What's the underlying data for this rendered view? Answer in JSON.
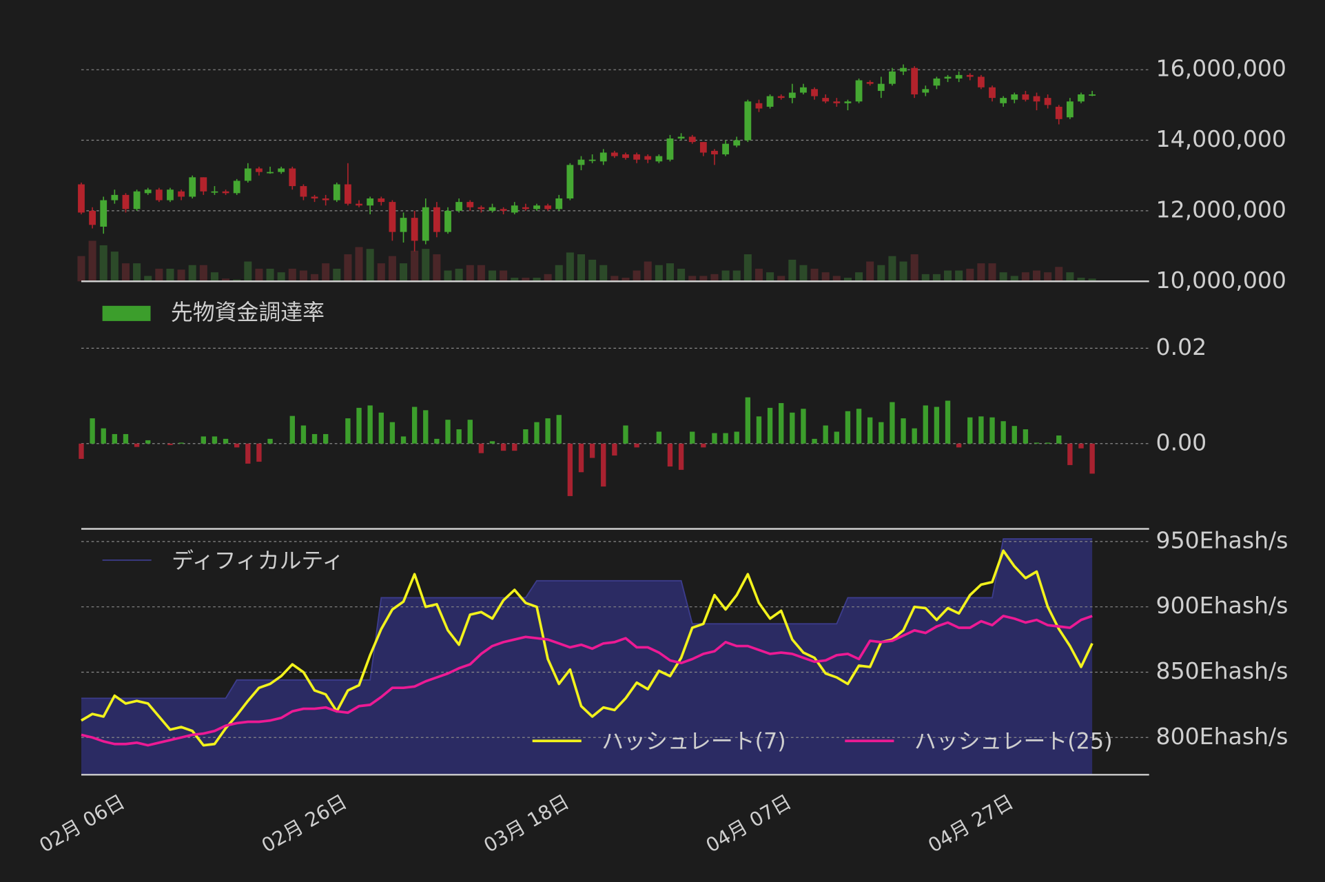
{
  "chart_data": [
    {
      "type": "candlestick",
      "open": [
        12750000,
        12000000,
        11550000,
        12300000,
        12450000,
        12050000,
        12500000,
        12600000,
        12300000,
        12550000,
        12400000,
        12950000,
        12550000,
        12550000,
        12500000,
        12850000,
        13200000,
        13100000,
        13100000,
        13200000,
        12700000,
        12400000,
        12350000,
        12300000,
        12750000,
        12200000,
        12150000,
        12350000,
        12250000,
        11400000,
        11800000,
        11150000,
        12100000,
        11400000,
        12000000,
        12250000,
        12100000,
        12000000,
        12050000,
        11950000,
        12100000,
        12050000,
        12150000,
        12050000,
        12350000,
        13300000,
        13450000,
        13400000,
        13650000,
        13600000,
        13600000,
        13550000,
        13400000,
        13450000,
        14050000,
        14100000,
        13950000,
        13700000,
        13600000,
        13850000,
        14000000,
        15050000,
        14950000,
        15250000,
        15200000,
        15350000,
        15450000,
        15200000,
        15100000,
        15050000,
        15100000,
        15650000,
        15400000,
        15600000,
        15950000,
        16050000,
        15350000,
        15550000,
        15750000,
        15750000,
        15850000,
        15800000,
        15500000,
        15050000,
        15150000,
        15300000,
        15250000,
        15200000,
        14950000,
        14650000,
        15100000,
        15300000
      ],
      "high": [
        12800000,
        12100000,
        12400000,
        12600000,
        12500000,
        12600000,
        12650000,
        12650000,
        12650000,
        12600000,
        13000000,
        12950000,
        12700000,
        12600000,
        12900000,
        13350000,
        13250000,
        13250000,
        13250000,
        13250000,
        12750000,
        12450000,
        12450000,
        12800000,
        13350000,
        12300000,
        12400000,
        12400000,
        12300000,
        11950000,
        12000000,
        12350000,
        12250000,
        12100000,
        12350000,
        12300000,
        12150000,
        12200000,
        12100000,
        12250000,
        12200000,
        12200000,
        12200000,
        12450000,
        13350000,
        13550000,
        13600000,
        13750000,
        13700000,
        13650000,
        13650000,
        13600000,
        13600000,
        14150000,
        14200000,
        14150000,
        13950000,
        13750000,
        14000000,
        14100000,
        15150000,
        15150000,
        15300000,
        15300000,
        15600000,
        15600000,
        15500000,
        15300000,
        15200000,
        15150000,
        15750000,
        15700000,
        15800000,
        16050000,
        16150000,
        16100000,
        15550000,
        15800000,
        15850000,
        15950000,
        15900000,
        15850000,
        15550000,
        15250000,
        15350000,
        15400000,
        15350000,
        15300000,
        15000000,
        15200000,
        15350000,
        15400000
      ],
      "low": [
        11900000,
        11500000,
        11350000,
        12200000,
        11950000,
        12000000,
        12450000,
        12250000,
        12250000,
        12300000,
        12350000,
        12450000,
        12450000,
        12450000,
        12450000,
        12800000,
        13000000,
        13050000,
        13050000,
        12600000,
        12300000,
        12250000,
        12150000,
        12250000,
        12150000,
        12100000,
        11900000,
        12150000,
        11150000,
        11100000,
        10850000,
        11050000,
        11250000,
        11350000,
        11950000,
        12000000,
        11950000,
        11950000,
        11900000,
        11900000,
        12000000,
        12000000,
        12000000,
        12000000,
        12300000,
        13150000,
        13350000,
        13300000,
        13500000,
        13450000,
        13350000,
        13350000,
        13350000,
        13400000,
        14000000,
        13900000,
        13550000,
        13300000,
        13550000,
        13800000,
        13950000,
        14800000,
        14900000,
        15150000,
        15050000,
        15300000,
        15150000,
        15050000,
        14950000,
        14850000,
        15050000,
        15550000,
        15200000,
        15550000,
        15850000,
        15200000,
        15250000,
        15450000,
        15650000,
        15650000,
        15700000,
        15450000,
        15100000,
        14950000,
        15050000,
        15100000,
        14850000,
        14900000,
        14450000,
        14600000,
        15050000,
        15250000
      ],
      "close": [
        11950000,
        11600000,
        12300000,
        12450000,
        12050000,
        12550000,
        12600000,
        12300000,
        12600000,
        12400000,
        12950000,
        12550000,
        12550000,
        12500000,
        12850000,
        13200000,
        13100000,
        13100000,
        13200000,
        12700000,
        12400000,
        12350000,
        12300000,
        12750000,
        12200000,
        12150000,
        12350000,
        12250000,
        11400000,
        11800000,
        11150000,
        12100000,
        11400000,
        12000000,
        12250000,
        12100000,
        12050000,
        12100000,
        12000000,
        12150000,
        12050000,
        12150000,
        12050000,
        12350000,
        13300000,
        13450000,
        13450000,
        13650000,
        13550000,
        13500000,
        13450000,
        13450000,
        13550000,
        14050000,
        14100000,
        13950000,
        13650000,
        13600000,
        13900000,
        14000000,
        15100000,
        14900000,
        15250000,
        15200000,
        15350000,
        15500000,
        15250000,
        15100000,
        15050000,
        15100000,
        15700000,
        15600000,
        15600000,
        15950000,
        16050000,
        15300000,
        15450000,
        15750000,
        15800000,
        15850000,
        15800000,
        15500000,
        15200000,
        15200000,
        15300000,
        15150000,
        15100000,
        15000000,
        14600000,
        15100000,
        15300000,
        15300000
      ],
      "volume": [
        28,
        45,
        40,
        33,
        20,
        20,
        6,
        14,
        14,
        13,
        18,
        18,
        10,
        3,
        2,
        22,
        14,
        14,
        10,
        14,
        12,
        8,
        20,
        14,
        30,
        38,
        36,
        20,
        28,
        20,
        34,
        36,
        30,
        12,
        14,
        18,
        18,
        12,
        12,
        4,
        4,
        4,
        8,
        18,
        32,
        30,
        24,
        18,
        6,
        4,
        12,
        22,
        18,
        20,
        14,
        6,
        6,
        8,
        12,
        12,
        30,
        14,
        10,
        6,
        24,
        18,
        14,
        10,
        6,
        4,
        10,
        22,
        18,
        28,
        22,
        30,
        8,
        8,
        12,
        12,
        14,
        20,
        20,
        10,
        6,
        10,
        12,
        10,
        16,
        10,
        4,
        3
      ],
      "up_color": "#45a832",
      "down_color": "#b3232c",
      "volume_up_color": "#2c4a29",
      "volume_down_color": "#4a2628",
      "ylim": [
        10000000,
        16300000
      ],
      "yticks": [
        {
          "value": 10000000,
          "label": "10,000,000"
        },
        {
          "value": 12000000,
          "label": "12,000,000"
        },
        {
          "value": 14000000,
          "label": "14,000,000"
        },
        {
          "value": 16000000,
          "label": "16,000,000"
        }
      ],
      "grid": true
    },
    {
      "type": "bar",
      "series": [
        {
          "name": "先物資金調達率",
          "color": "#3c9e2c",
          "negative_color": "#a82230",
          "values": [
            -0.0032,
            0.0053,
            0.0032,
            0.002,
            0.002,
            -0.0007,
            0.0007,
            0,
            -0.0003,
            0.0002,
            0,
            0.0015,
            0.0015,
            0.001,
            -0.0008,
            -0.0042,
            -0.0038,
            0.001,
            0,
            0.0058,
            0.0038,
            0.002,
            0.002,
            0,
            0.0053,
            0.0075,
            0.008,
            0.0065,
            0.0045,
            0.0015,
            0.0077,
            0.007,
            0.001,
            0.005,
            0.003,
            0.005,
            -0.002,
            0.0005,
            -0.0015,
            -0.0015,
            0.003,
            0.0045,
            0.0053,
            0.006,
            -0.011,
            -0.006,
            -0.003,
            -0.009,
            -0.0025,
            0.0038,
            -0.0008,
            0,
            0.0025,
            -0.0048,
            -0.0055,
            0.0025,
            -0.0008,
            0.0022,
            0.0022,
            0.0025,
            0.0097,
            0.0057,
            0.0075,
            0.0085,
            0.0065,
            0.0073,
            0.001,
            0.0038,
            0.0025,
            0.0068,
            0.0073,
            0.0055,
            0.0045,
            0.0087,
            0.0053,
            0.0032,
            0.008,
            0.0077,
            0.009,
            -0.0008,
            0.0055,
            0.0057,
            0.0055,
            0.0047,
            0.0037,
            0.003,
            0.0002,
            0.0002,
            0.0017,
            -0.0045,
            -0.001,
            -0.0063
          ]
        }
      ],
      "ylim": [
        -0.0177,
        0.0319
      ],
      "yticks": [
        {
          "value": 0,
          "label": "0.00"
        },
        0.02
      ],
      "grid": true
    },
    {
      "type": "line",
      "categories": [
        "02月 06日",
        null,
        null,
        null,
        null,
        null,
        null,
        null,
        null,
        null,
        null,
        null,
        null,
        null,
        null,
        null,
        null,
        null,
        null,
        null,
        "02月 26日",
        null,
        null,
        null,
        null,
        null,
        null,
        null,
        null,
        null,
        null,
        null,
        null,
        null,
        null,
        null,
        null,
        null,
        null,
        null,
        "03月 18日",
        null,
        null,
        null,
        null,
        null,
        null,
        null,
        null,
        null,
        null,
        null,
        null,
        null,
        null,
        null,
        null,
        null,
        null,
        null,
        "04月 07日",
        null,
        null,
        null,
        null,
        null,
        null,
        null,
        null,
        null,
        null,
        null,
        null,
        null,
        null,
        null,
        null,
        null,
        null,
        null,
        "04月 27日",
        null,
        null,
        null,
        null,
        null,
        null,
        null,
        null,
        null,
        null,
        null
      ],
      "series": [
        {
          "name": "ディフィカルティ",
          "type": "area",
          "color": "#2b2b63",
          "values": [
            830,
            830,
            830,
            830,
            830,
            830,
            830,
            830,
            830,
            830,
            830,
            830,
            830,
            830,
            844,
            844,
            844,
            844,
            844,
            844,
            844,
            844,
            844,
            844,
            844,
            844,
            844,
            907,
            907,
            907,
            907,
            907,
            907,
            907,
            907,
            907,
            907,
            907,
            907,
            907,
            907,
            920,
            920,
            920,
            920,
            920,
            920,
            920,
            920,
            920,
            920,
            920,
            920,
            920,
            920,
            887,
            887,
            887,
            887,
            887,
            887,
            887,
            887,
            887,
            887,
            887,
            887,
            887,
            887,
            907,
            907,
            907,
            907,
            907,
            907,
            907,
            907,
            907,
            907,
            907,
            907,
            907,
            907,
            952,
            952,
            952,
            952,
            952,
            952,
            952,
            952,
            952
          ]
        },
        {
          "name": "ハッシュレート(7)",
          "color": "#f2f21c",
          "values": [
            813,
            818,
            816,
            832,
            826,
            828,
            826,
            816,
            806,
            808,
            805,
            794,
            795,
            807,
            817,
            828,
            838,
            841,
            847,
            856,
            850,
            836,
            833,
            820,
            836,
            840,
            863,
            883,
            898,
            904,
            925,
            900,
            902,
            882,
            871,
            894,
            896,
            891,
            905,
            913,
            903,
            900,
            860,
            841,
            852,
            824,
            816,
            823,
            821,
            830,
            842,
            837,
            851,
            847,
            861,
            884,
            887,
            909,
            898,
            909,
            925,
            903,
            891,
            897,
            875,
            865,
            861,
            849,
            846,
            841,
            855,
            854,
            873,
            875,
            882,
            900,
            899,
            890,
            899,
            895,
            909,
            917,
            919,
            943,
            931,
            922,
            927,
            900,
            883,
            870,
            854,
            872
          ]
        },
        {
          "name": "ハッシュレート(25)",
          "color": "#ec1a94",
          "values": [
            802,
            800,
            797,
            795,
            795,
            796,
            794,
            796,
            798,
            800,
            802,
            803,
            805,
            809,
            811,
            812,
            812,
            813,
            815,
            820,
            822,
            822,
            823,
            820,
            819,
            824,
            825,
            831,
            838,
            838,
            839,
            843,
            846,
            849,
            853,
            856,
            864,
            870,
            873,
            875,
            877,
            876,
            875,
            872,
            869,
            871,
            868,
            872,
            873,
            876,
            869,
            869,
            865,
            859,
            857,
            860,
            864,
            866,
            873,
            870,
            870,
            867,
            864,
            865,
            864,
            861,
            858,
            859,
            863,
            864,
            860,
            874,
            873,
            874,
            878,
            882,
            880,
            885,
            888,
            884,
            884,
            889,
            886,
            893,
            891,
            888,
            890,
            886,
            885,
            884,
            890,
            893
          ]
        }
      ],
      "ylim": [
        771.5,
        959.7
      ],
      "yticks": [
        {
          "value": 800,
          "label": "800Ehash/s"
        },
        {
          "value": 850,
          "label": "850Ehash/s"
        },
        {
          "value": 900,
          "label": "900Ehash/s"
        },
        {
          "value": 950,
          "label": "950Ehash/s"
        }
      ],
      "grid": true
    }
  ]
}
